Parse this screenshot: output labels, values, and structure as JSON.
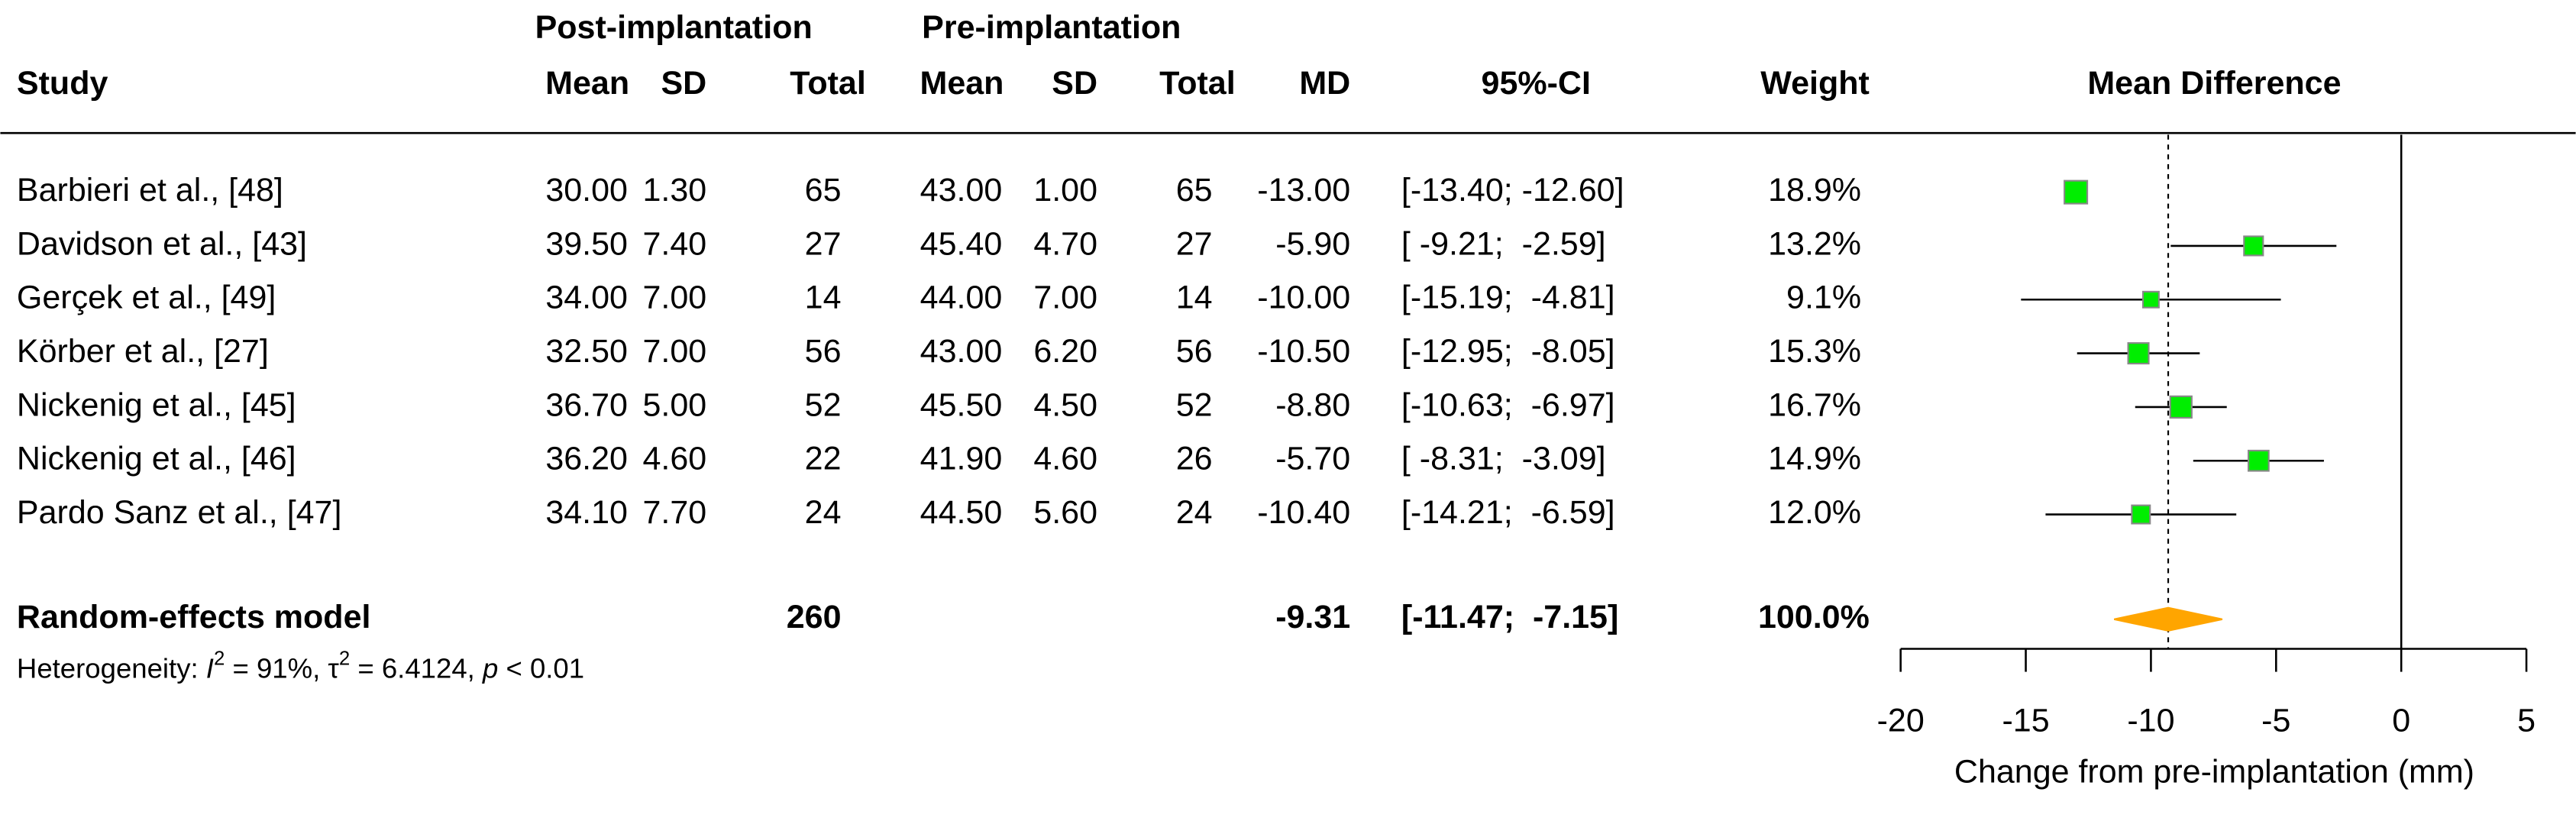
{
  "chart_data": {
    "type": "forest",
    "header": {
      "groups": [
        "Post-implantation",
        "Pre-implantation"
      ],
      "columns": [
        "Study",
        "Mean",
        "SD",
        "Total",
        "Mean",
        "SD",
        "Total",
        "MD",
        "95%-CI",
        "Weight",
        "Mean Difference"
      ]
    },
    "studies": [
      {
        "name": "Barbieri et al., [48]",
        "cells": [
          "30.00",
          "1.30",
          "65",
          "43.00",
          "1.00",
          "65"
        ],
        "md": {
          "value": -13.0,
          "label": "-13.00"
        },
        "ci": {
          "lower": -13.4,
          "upper": -12.6,
          "label": "[-13.40; -12.60]"
        },
        "weight": {
          "value": 18.9,
          "label": "18.9%"
        }
      },
      {
        "name": "Davidson et al., [43]",
        "cells": [
          "39.50",
          "7.40",
          "27",
          "45.40",
          "4.70",
          "27"
        ],
        "md": {
          "value": -5.9,
          "label": "-5.90"
        },
        "ci": {
          "lower": -9.21,
          "upper": -2.59,
          "label": "[ -9.21;  -2.59]"
        },
        "weight": {
          "value": 13.2,
          "label": "13.2%"
        }
      },
      {
        "name": "Gerçek et al., [49]",
        "cells": [
          "34.00",
          "7.00",
          "14",
          "44.00",
          "7.00",
          "14"
        ],
        "md": {
          "value": -10.0,
          "label": "-10.00"
        },
        "ci": {
          "lower": -15.19,
          "upper": -4.81,
          "label": "[-15.19;  -4.81]"
        },
        "weight": {
          "value": 9.1,
          "label": "9.1%"
        }
      },
      {
        "name": "Körber et al., [27]",
        "cells": [
          "32.50",
          "7.00",
          "56",
          "43.00",
          "6.20",
          "56"
        ],
        "md": {
          "value": -10.5,
          "label": "-10.50"
        },
        "ci": {
          "lower": -12.95,
          "upper": -8.05,
          "label": "[-12.95;  -8.05]"
        },
        "weight": {
          "value": 15.3,
          "label": "15.3%"
        }
      },
      {
        "name": "Nickenig et al., [45]",
        "cells": [
          "36.70",
          "5.00",
          "52",
          "45.50",
          "4.50",
          "52"
        ],
        "md": {
          "value": -8.8,
          "label": "-8.80"
        },
        "ci": {
          "lower": -10.63,
          "upper": -6.97,
          "label": "[-10.63;  -6.97]"
        },
        "weight": {
          "value": 16.7,
          "label": "16.7%"
        }
      },
      {
        "name": "Nickenig et al., [46]",
        "cells": [
          "36.20",
          "4.60",
          "22",
          "41.90",
          "4.60",
          "26"
        ],
        "md": {
          "value": -5.7,
          "label": "-5.70"
        },
        "ci": {
          "lower": -8.31,
          "upper": -3.09,
          "label": "[ -8.31;  -3.09]"
        },
        "weight": {
          "value": 14.9,
          "label": "14.9%"
        }
      },
      {
        "name": "Pardo Sanz et al., [47]",
        "cells": [
          "34.10",
          "7.70",
          "24",
          "44.50",
          "5.60",
          "24"
        ],
        "md": {
          "value": -10.4,
          "label": "-10.40"
        },
        "ci": {
          "lower": -14.21,
          "upper": -6.59,
          "label": "[-14.21;  -6.59]"
        },
        "weight": {
          "value": 12.0,
          "label": "12.0%"
        }
      }
    ],
    "summary": {
      "name": "Random-effects model",
      "total": "260",
      "md": {
        "value": -9.31,
        "label": "-9.31"
      },
      "ci": {
        "lower": -11.47,
        "upper": -7.15,
        "label": "[-11.47;  -7.15]"
      },
      "weight": {
        "value": 100.0,
        "label": "100.0%"
      }
    },
    "heterogeneity": [
      "Heterogeneity: ",
      "I",
      "2",
      " = 91%, ",
      "τ",
      "2",
      " = 6.4124, ",
      "p",
      " < 0.01"
    ],
    "xlim": [
      -20,
      5
    ],
    "xticks": [
      -20,
      -15,
      -10,
      -5,
      0,
      5
    ],
    "null_line": 0,
    "x_label": "Change from pre-implantation (mm)",
    "square_color": "#00ee00",
    "diamond_color": "#ffa500"
  }
}
